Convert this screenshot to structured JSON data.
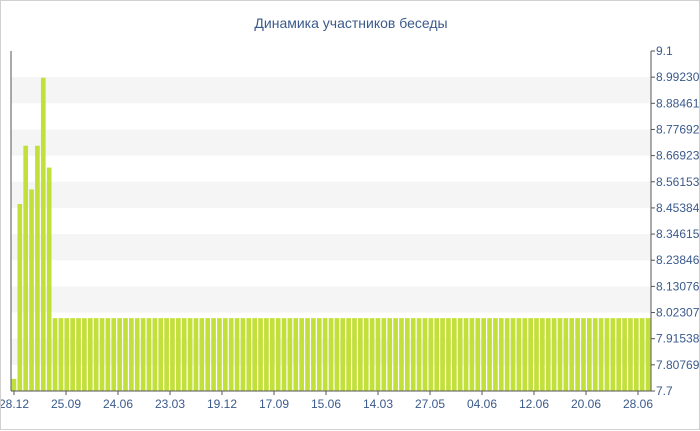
{
  "chart_data": {
    "type": "bar",
    "title": "Динамика участников беседы",
    "xlabel": "",
    "ylabel": "",
    "ylim": [
      7.7,
      9.1
    ],
    "y_axis_position": "right",
    "grid": "horizontal bands",
    "bar_color": "#c2e03a",
    "y_ticks": [
      "9.1",
      "8.99230",
      "8.88461",
      "8.77692",
      "8.66923",
      "8.56153",
      "8.45384",
      "8.34615",
      "8.23846",
      "8.13076",
      "8.02307",
      "7.91538",
      "7.80769",
      "7.7"
    ],
    "x_ticks": [
      "28.12",
      "25.09",
      "24.06",
      "23.03",
      "19.12",
      "17.09",
      "15.06",
      "14.03",
      "27.05",
      "04.06",
      "12.06",
      "20.06",
      "28.06"
    ],
    "values": [
      7.75,
      8.47,
      8.71,
      8.53,
      8.71,
      8.99,
      8.62,
      8.0,
      8.0,
      8.0,
      8.0,
      8.0,
      8.0,
      8.0,
      8.0,
      8.0,
      8.0,
      8.0,
      8.0,
      8.0,
      8.0,
      8.0,
      8.0,
      8.0,
      8.0,
      8.0,
      8.0,
      8.0,
      8.0,
      8.0,
      8.0,
      8.0,
      8.0,
      8.0,
      8.0,
      8.0,
      8.0,
      8.0,
      8.0,
      8.0,
      8.0,
      8.0,
      8.0,
      8.0,
      8.0,
      8.0,
      8.0,
      8.0,
      8.0,
      8.0,
      8.0,
      8.0,
      8.0,
      8.0,
      8.0,
      8.0,
      8.0,
      8.0,
      8.0,
      8.0,
      8.0,
      8.0,
      8.0,
      8.0,
      8.0,
      8.0,
      8.0,
      8.0,
      8.0,
      8.0,
      8.0,
      8.0,
      8.0,
      8.0,
      8.0,
      8.0,
      8.0,
      8.0,
      8.0,
      8.0,
      8.0,
      8.0,
      8.0,
      8.0,
      8.0,
      8.0,
      8.0,
      8.0,
      8.0,
      8.0,
      8.0,
      8.0,
      8.0,
      8.0,
      8.0,
      8.0,
      8.0,
      8.0,
      8.0,
      8.0,
      8.0,
      8.0,
      8.0,
      8.0,
      8.0,
      8.0,
      8.0,
      8.0,
      8.0
    ]
  }
}
